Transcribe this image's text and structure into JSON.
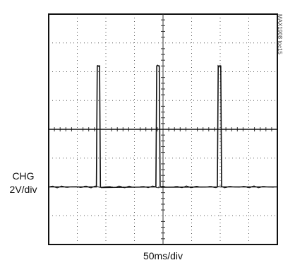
{
  "chart_data": {
    "type": "line",
    "title": "",
    "xlabel": "50ms/div",
    "channel": {
      "name": "CHG",
      "scale": "2V/div"
    },
    "annotation": "MAX1908 toc15",
    "x_divisions": 8,
    "y_divisions": 8,
    "grid": true,
    "series": [
      {
        "x": [
          0,
          1.67,
          1.7,
          1.72,
          1.75,
          1.78,
          1.81,
          1.84,
          3.75,
          3.78,
          3.81,
          3.84,
          3.87,
          3.9,
          3.93,
          5.9,
          5.93,
          5.96,
          5.99,
          6.02,
          6.05,
          6.08,
          8
        ],
        "y": [
          2.0,
          2.0,
          6.2,
          6.2,
          6.2,
          6.2,
          2.0,
          2.0,
          2.0,
          6.2,
          6.2,
          6.2,
          6.2,
          2.0,
          2.0,
          2.0,
          6.2,
          6.2,
          6.2,
          6.2,
          2.0,
          2.0,
          2.0
        ]
      }
    ],
    "center_marker_y": 4.0,
    "xlim": [
      0,
      8
    ],
    "ylim": [
      0,
      8
    ]
  }
}
